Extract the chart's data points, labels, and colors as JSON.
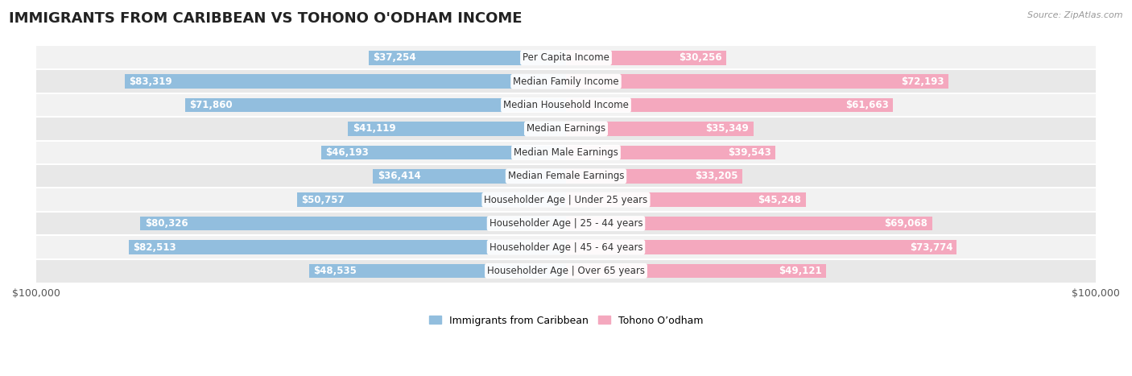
{
  "title": "IMMIGRANTS FROM CARIBBEAN VS TOHONO O'ODHAM INCOME",
  "source": "Source: ZipAtlas.com",
  "categories": [
    "Per Capita Income",
    "Median Family Income",
    "Median Household Income",
    "Median Earnings",
    "Median Male Earnings",
    "Median Female Earnings",
    "Householder Age | Under 25 years",
    "Householder Age | 25 - 44 years",
    "Householder Age | 45 - 64 years",
    "Householder Age | Over 65 years"
  ],
  "caribbean_values": [
    37254,
    83319,
    71860,
    41119,
    46193,
    36414,
    50757,
    80326,
    82513,
    48535
  ],
  "tohono_values": [
    30256,
    72193,
    61663,
    35349,
    39543,
    33205,
    45248,
    69068,
    73774,
    49121
  ],
  "caribbean_color": "#92bede",
  "tohono_color": "#f4a8be",
  "max_value": 100000,
  "background_color": "#ffffff",
  "label_fontsize": 8.5,
  "title_fontsize": 13,
  "legend_caribbean": "Immigrants from Caribbean",
  "legend_tohono": "Tohono O’odham",
  "row_colors": [
    "#f2f2f2",
    "#e8e8e8"
  ],
  "bar_thick_threshold": 60000,
  "inside_label_threshold": 20000
}
